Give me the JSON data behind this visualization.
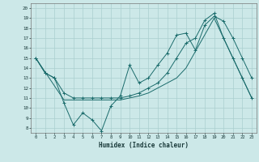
{
  "xlabel": "Humidex (Indice chaleur)",
  "bg_color": "#cce8e8",
  "line_color": "#1a6b6b",
  "grid_color": "#aacfcf",
  "xlim": [
    -0.5,
    23.5
  ],
  "ylim": [
    7.5,
    20.5
  ],
  "yticks": [
    8,
    9,
    10,
    11,
    12,
    13,
    14,
    15,
    16,
    17,
    18,
    19,
    20
  ],
  "xticks": [
    0,
    1,
    2,
    3,
    4,
    5,
    6,
    7,
    8,
    9,
    10,
    11,
    12,
    13,
    14,
    15,
    16,
    17,
    18,
    19,
    20,
    21,
    22,
    23
  ],
  "line1_x": [
    0,
    1,
    2,
    3,
    4,
    5,
    6,
    7,
    8,
    9,
    10,
    11,
    12,
    13,
    14,
    15,
    16,
    17,
    18,
    19,
    20,
    21,
    22,
    23
  ],
  "line1_y": [
    15,
    13.5,
    13,
    10.5,
    8.3,
    9.5,
    8.8,
    7.7,
    10.2,
    11.2,
    14.3,
    12.5,
    13.0,
    14.3,
    15.5,
    17.3,
    17.5,
    15.8,
    18.3,
    19.2,
    18.7,
    17.0,
    15.0,
    13.0
  ],
  "line2_x": [
    0,
    3,
    9,
    10,
    11,
    12,
    13,
    14,
    15,
    16,
    19,
    20,
    21,
    22,
    23
  ],
  "line2_y": [
    15,
    10.8,
    10.8,
    11.0,
    11.2,
    11.5,
    12.0,
    12.5,
    13.0,
    14.0,
    19.0,
    17.0,
    15.0,
    13.0,
    11.0
  ],
  "line3_x": [
    0,
    1,
    2,
    3,
    4,
    5,
    6,
    7,
    8,
    9,
    10,
    11,
    12,
    13,
    14,
    15,
    16,
    17,
    18,
    19,
    20,
    21,
    22,
    23
  ],
  "line3_y": [
    15,
    13.5,
    13.0,
    11.5,
    11.0,
    11.0,
    11.0,
    11.0,
    11.0,
    11.0,
    11.2,
    11.5,
    12.0,
    12.5,
    13.5,
    15.0,
    16.5,
    17.0,
    18.8,
    19.5,
    17.0,
    15.0,
    13.0,
    11.0
  ]
}
